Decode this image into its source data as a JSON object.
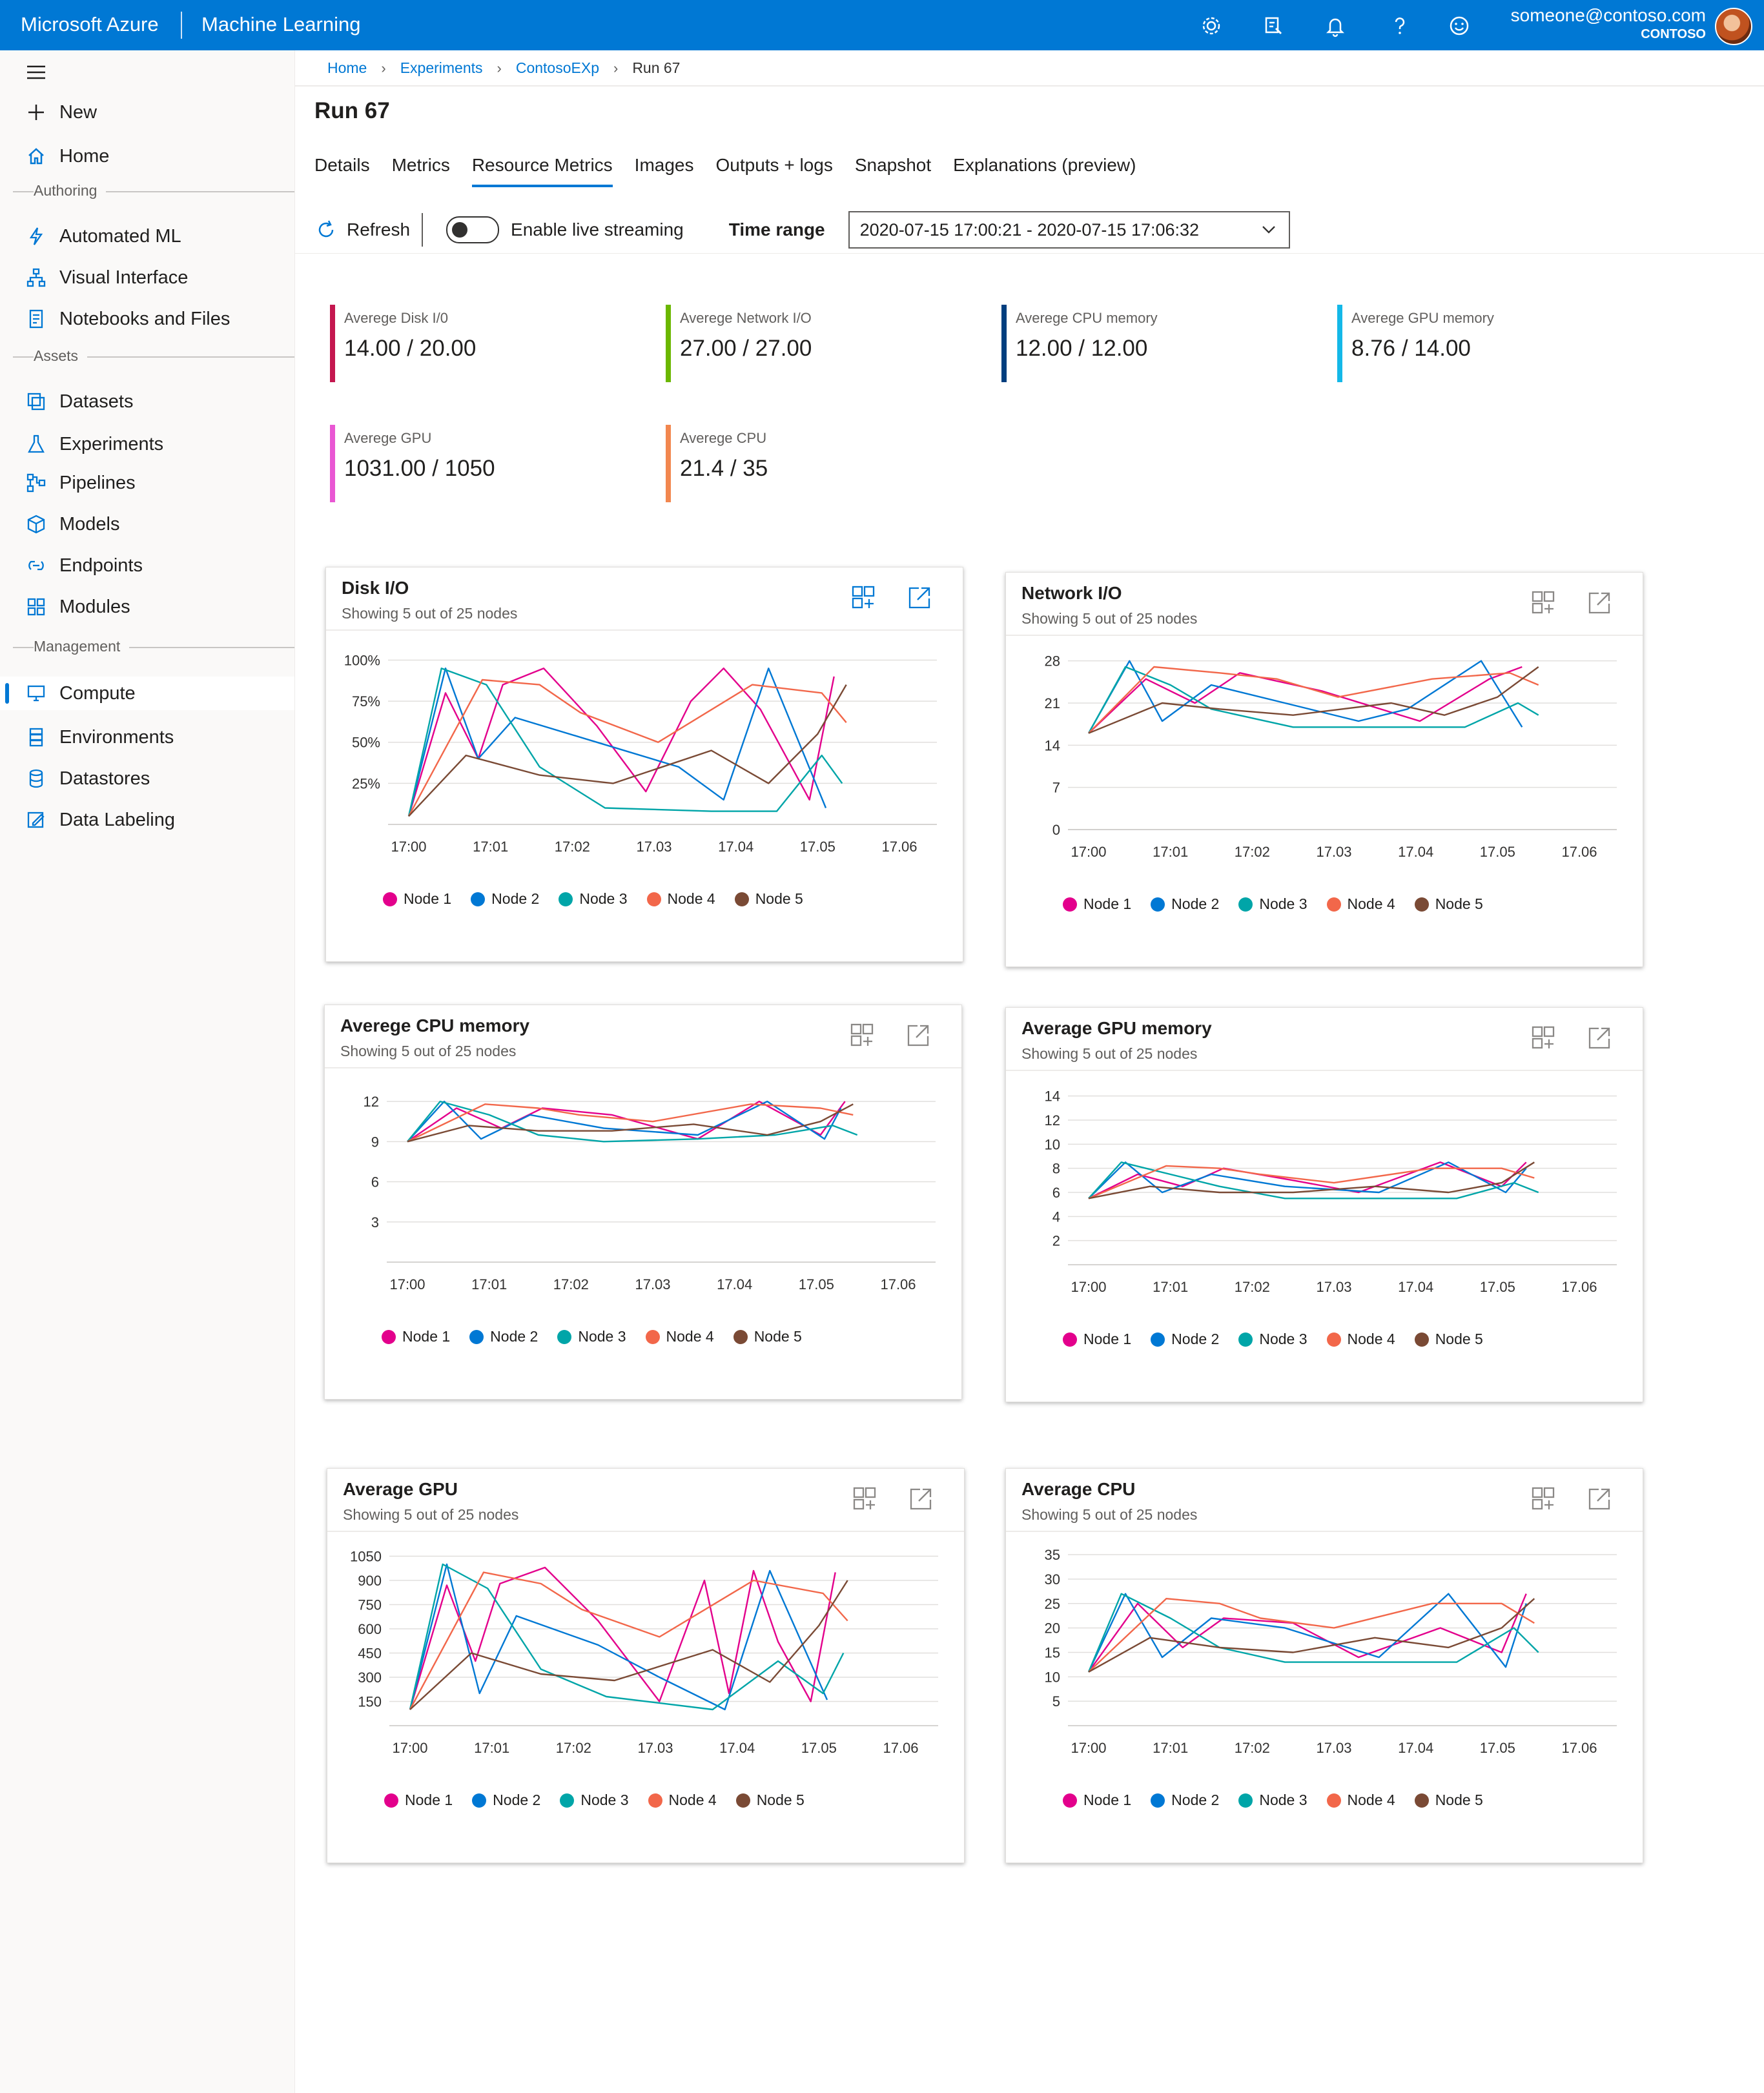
{
  "topbar": {
    "brand": "Microsoft Azure",
    "product": "Machine Learning",
    "icons": [
      "gear-icon",
      "feedback-icon",
      "bell-icon",
      "help-icon",
      "smiley-icon"
    ],
    "user_email": "someone@contoso.com",
    "user_tenant": "CONTOSO"
  },
  "sidebar": {
    "new_label": "New",
    "home_label": "Home",
    "sections": {
      "authoring": "Authoring",
      "assets": "Assets",
      "management": "Management"
    },
    "authoring": [
      {
        "label": "Automated ML",
        "icon": "automl-icon"
      },
      {
        "label": "Visual Interface",
        "icon": "designer-icon"
      },
      {
        "label": "Notebooks and Files",
        "icon": "notebook-icon"
      }
    ],
    "assets": [
      {
        "label": "Datasets",
        "icon": "datasets-icon"
      },
      {
        "label": "Experiments",
        "icon": "flask-icon"
      },
      {
        "label": "Pipelines",
        "icon": "pipeline-icon"
      },
      {
        "label": "Models",
        "icon": "cube-icon"
      },
      {
        "label": "Endpoints",
        "icon": "endpoint-icon"
      },
      {
        "label": "Modules",
        "icon": "modules-icon"
      }
    ],
    "management": [
      {
        "label": "Compute",
        "icon": "compute-icon",
        "selected": true
      },
      {
        "label": "Environments",
        "icon": "environment-icon"
      },
      {
        "label": "Datastores",
        "icon": "database-icon"
      },
      {
        "label": "Data Labeling",
        "icon": "label-icon"
      }
    ]
  },
  "breadcrumb": [
    "Home",
    "Experiments",
    "ContosoEXp",
    "Run 67"
  ],
  "page_title": "Run 67",
  "tabs": [
    {
      "label": "Details"
    },
    {
      "label": "Metrics"
    },
    {
      "label": "Resource Metrics",
      "active": true
    },
    {
      "label": "Images"
    },
    {
      "label": "Outputs + logs"
    },
    {
      "label": "Snapshot"
    },
    {
      "label": "Explanations (preview)"
    }
  ],
  "toolbar": {
    "refresh_label": "Refresh",
    "streaming_label": "Enable live streaming",
    "streaming_on": false,
    "time_range_label": "Time range",
    "time_range_value": "2020-07-15 17:00:21 - 2020-07-15 17:06:32"
  },
  "stats": [
    {
      "label": "Averege  Disk I/0",
      "value": "14.00 / 20.00",
      "color": "#c4174f"
    },
    {
      "label": "Averege Network I/O",
      "value": "27.00 / 27.00",
      "color": "#6bb700"
    },
    {
      "label": "Averege CPU memory",
      "value": "12.00 / 12.00",
      "color": "#003f7f"
    },
    {
      "label": "Averege GPU memory",
      "value": "8.76 / 14.00",
      "color": "#14b8e8"
    },
    {
      "label": "Averege  GPU",
      "value": "1031.00 / 1050",
      "color": "#e957d3"
    },
    {
      "label": "Averege CPU",
      "value": "21.4 / 35",
      "color": "#f2874f"
    }
  ],
  "series_colors": {
    "Node 1": "#e3008c",
    "Node 2": "#0078d4",
    "Node 3": "#00a5a8",
    "Node 4": "#f2674a",
    "Node 5": "#7a4a35"
  },
  "chart_data": [
    {
      "type": "line",
      "title": "Disk I/O",
      "subtitle": "Showing 5 out of 25 nodes",
      "x_labels": [
        "17:00",
        "17:01",
        "17:02",
        "17.03",
        "17.04",
        "17.05",
        "17.06"
      ],
      "ylim": [
        0,
        110
      ],
      "yticks": [
        25,
        50,
        75,
        100
      ],
      "ytick_labels": [
        "25%",
        "50%",
        "75%",
        "100%"
      ],
      "highlighted": true,
      "series": [
        {
          "name": "Node 1",
          "x": [
            0,
            0.45,
            0.85,
            1.15,
            1.65,
            2.3,
            2.9,
            3.45,
            3.85,
            4.3,
            4.9,
            5.2
          ],
          "values": [
            5,
            80,
            40,
            85,
            95,
            60,
            20,
            75,
            95,
            70,
            15,
            90
          ]
        },
        {
          "name": "Node 2",
          "x": [
            0,
            0.45,
            0.85,
            1.3,
            2.3,
            3.3,
            3.85,
            4.4,
            5.1
          ],
          "values": [
            5,
            95,
            40,
            65,
            50,
            35,
            15,
            95,
            10
          ]
        },
        {
          "name": "Node 3",
          "x": [
            0,
            0.4,
            0.95,
            1.6,
            2.4,
            3.7,
            4.5,
            5.05,
            5.3
          ],
          "values": [
            5,
            95,
            85,
            35,
            10,
            8,
            8,
            42,
            25
          ]
        },
        {
          "name": "Node 4",
          "x": [
            0,
            0.9,
            1.6,
            2.1,
            3.05,
            4.2,
            5.05,
            5.35
          ],
          "values": [
            5,
            88,
            85,
            68,
            50,
            85,
            80,
            62
          ]
        },
        {
          "name": "Node 5",
          "x": [
            0,
            0.7,
            1.6,
            2.5,
            3.7,
            4.4,
            5.0,
            5.35
          ],
          "values": [
            5,
            42,
            30,
            25,
            45,
            25,
            55,
            85
          ]
        }
      ]
    },
    {
      "type": "line",
      "title": "Network I/O",
      "subtitle": "Showing 5 out of 25 nodes",
      "x_labels": [
        "17:00",
        "17:01",
        "17:02",
        "17.03",
        "17.04",
        "17.05",
        "17.06"
      ],
      "ylim": [
        0,
        30
      ],
      "yticks": [
        0,
        7,
        14,
        21,
        28
      ],
      "ytick_labels": [
        "0",
        "7",
        "14",
        "21",
        "28"
      ],
      "series": [
        {
          "name": "Node 1",
          "x": [
            0,
            0.7,
            1.3,
            1.85,
            2.85,
            4.05,
            4.9,
            5.3
          ],
          "values": [
            16,
            25,
            21,
            26,
            23,
            18,
            25,
            27
          ]
        },
        {
          "name": "Node 2",
          "x": [
            0,
            0.5,
            0.9,
            1.5,
            2.4,
            3.3,
            3.9,
            4.8,
            5.3
          ],
          "values": [
            16,
            28,
            18,
            24,
            21,
            18,
            20,
            28,
            17
          ]
        },
        {
          "name": "Node 3",
          "x": [
            0,
            0.45,
            1.0,
            1.5,
            2.5,
            3.6,
            4.6,
            5.25,
            5.5
          ],
          "values": [
            16,
            27,
            24,
            20,
            17,
            17,
            17,
            21,
            19
          ]
        },
        {
          "name": "Node 4",
          "x": [
            0,
            0.8,
            1.6,
            2.3,
            3.05,
            4.2,
            5.15,
            5.5
          ],
          "values": [
            16,
            27,
            26,
            25,
            22,
            25,
            26,
            24
          ]
        },
        {
          "name": "Node 5",
          "x": [
            0,
            0.9,
            1.6,
            2.5,
            3.7,
            4.35,
            5.0,
            5.5
          ],
          "values": [
            16,
            21,
            20,
            19,
            21,
            19,
            22,
            27
          ]
        }
      ]
    },
    {
      "type": "line",
      "title": "Averege CPU memory",
      "subtitle": "Showing 5 out of 25 nodes",
      "x_labels": [
        "17:00",
        "17:01",
        "17:02",
        "17.03",
        "17.04",
        "17.05",
        "17.06"
      ],
      "ylim": [
        0,
        13.5
      ],
      "yticks": [
        3,
        6,
        9,
        12
      ],
      "ytick_labels": [
        "3",
        "6",
        "9",
        "12"
      ],
      "series": [
        {
          "name": "Node 1",
          "x": [
            0,
            0.6,
            1.15,
            1.65,
            2.5,
            3.55,
            4.3,
            5.05,
            5.35
          ],
          "values": [
            9,
            11.5,
            10,
            11.5,
            11,
            9.2,
            12,
            9.5,
            12
          ]
        },
        {
          "name": "Node 2",
          "x": [
            0,
            0.45,
            0.9,
            1.5,
            2.4,
            3.55,
            4.4,
            5.1,
            5.3
          ],
          "values": [
            9,
            12,
            9.2,
            11,
            10,
            9.5,
            12,
            9.2,
            11.5
          ]
        },
        {
          "name": "Node 3",
          "x": [
            0,
            0.4,
            1.0,
            1.6,
            2.4,
            3.55,
            4.5,
            5.2,
            5.5
          ],
          "values": [
            9,
            12,
            11,
            9.5,
            9,
            9.2,
            9.5,
            10.2,
            9.5
          ]
        },
        {
          "name": "Node 4",
          "x": [
            0,
            0.95,
            1.6,
            2.1,
            3.0,
            4.2,
            5.05,
            5.45
          ],
          "values": [
            9,
            11.8,
            11.5,
            11,
            10.5,
            11.8,
            11.5,
            11
          ]
        },
        {
          "name": "Node 5",
          "x": [
            0,
            0.75,
            1.6,
            2.5,
            3.5,
            4.4,
            5.05,
            5.45
          ],
          "values": [
            9,
            10.2,
            9.8,
            9.8,
            10.3,
            9.5,
            10.5,
            11.8
          ]
        }
      ]
    },
    {
      "type": "line",
      "title": "Average GPU memory",
      "subtitle": "Showing 5 out of 25 nodes",
      "x_labels": [
        "17:00",
        "17:01",
        "17:02",
        "17.03",
        "17.04",
        "17.05",
        "17.06"
      ],
      "ylim": [
        0,
        15
      ],
      "yticks": [
        2,
        4,
        6,
        8,
        10,
        12,
        14
      ],
      "ytick_labels": [
        "2",
        "4",
        "6",
        "8",
        "10",
        "12",
        "14"
      ],
      "series": [
        {
          "name": "Node 1",
          "x": [
            0,
            0.6,
            1.15,
            1.65,
            2.5,
            3.3,
            4.3,
            5.05,
            5.35
          ],
          "values": [
            5.5,
            7.5,
            6.5,
            8,
            7,
            6,
            8.5,
            6.5,
            8.5
          ]
        },
        {
          "name": "Node 2",
          "x": [
            0,
            0.45,
            0.9,
            1.5,
            2.4,
            3.55,
            4.4,
            5.1,
            5.35
          ],
          "values": [
            5.5,
            8.5,
            6,
            7.5,
            6.5,
            6,
            8.5,
            6,
            8
          ]
        },
        {
          "name": "Node 3",
          "x": [
            0,
            0.4,
            1.0,
            1.6,
            2.4,
            3.55,
            4.5,
            5.2,
            5.5
          ],
          "values": [
            5.5,
            8.5,
            7.5,
            6.5,
            5.5,
            5.5,
            5.5,
            6.8,
            6
          ]
        },
        {
          "name": "Node 4",
          "x": [
            0,
            0.95,
            1.6,
            2.1,
            3.0,
            4.2,
            5.05,
            5.45
          ],
          "values": [
            5.5,
            8.2,
            8,
            7.5,
            6.8,
            8,
            8,
            7.2
          ]
        },
        {
          "name": "Node 5",
          "x": [
            0,
            0.75,
            1.6,
            2.5,
            3.5,
            4.4,
            5.05,
            5.45
          ],
          "values": [
            5.5,
            6.5,
            6,
            6,
            6.5,
            6,
            6.8,
            8.5
          ]
        }
      ]
    },
    {
      "type": "line",
      "title": "Average GPU",
      "subtitle": "Showing 5 out of 25 nodes",
      "x_labels": [
        "17:00",
        "17:01",
        "17:02",
        "17.03",
        "17.04",
        "17.05",
        "17.06"
      ],
      "ylim": [
        0,
        1120
      ],
      "yticks": [
        150,
        300,
        450,
        600,
        750,
        900,
        1050
      ],
      "ytick_labels": [
        "150",
        "300",
        "450",
        "600",
        "750",
        "900",
        "1050"
      ],
      "series": [
        {
          "name": "Node 1",
          "x": [
            0,
            0.45,
            0.8,
            1.1,
            1.65,
            2.3,
            3.05,
            3.6,
            3.9,
            4.2,
            4.5,
            4.9,
            5.2
          ],
          "values": [
            100,
            870,
            400,
            880,
            980,
            650,
            150,
            900,
            200,
            960,
            520,
            150,
            950
          ]
        },
        {
          "name": "Node 2",
          "x": [
            0,
            0.45,
            0.85,
            1.3,
            2.3,
            3.05,
            3.85,
            4.4,
            5.1
          ],
          "values": [
            100,
            1000,
            200,
            680,
            500,
            300,
            100,
            960,
            160
          ]
        },
        {
          "name": "Node 3",
          "x": [
            0,
            0.4,
            0.95,
            1.6,
            2.4,
            3.7,
            4.5,
            5.05,
            5.3
          ],
          "values": [
            100,
            1000,
            850,
            350,
            180,
            100,
            400,
            200,
            450
          ]
        },
        {
          "name": "Node 4",
          "x": [
            0,
            0.9,
            1.6,
            2.1,
            3.05,
            4.2,
            5.05,
            5.35
          ],
          "values": [
            100,
            950,
            880,
            720,
            550,
            900,
            820,
            650
          ]
        },
        {
          "name": "Node 5",
          "x": [
            0,
            0.75,
            1.6,
            2.5,
            3.7,
            4.4,
            5.0,
            5.35
          ],
          "values": [
            100,
            450,
            320,
            280,
            470,
            270,
            620,
            900
          ]
        }
      ]
    },
    {
      "type": "line",
      "title": "Average CPU",
      "subtitle": "Showing 5 out of 25 nodes",
      "x_labels": [
        "17:00",
        "17:01",
        "17:02",
        "17.03",
        "17.04",
        "17.05",
        "17.06"
      ],
      "ylim": [
        0,
        37
      ],
      "yticks": [
        5,
        10,
        15,
        20,
        25,
        30,
        35
      ],
      "ytick_labels": [
        "5",
        "10",
        "15",
        "20",
        "25",
        "30",
        "35"
      ],
      "series": [
        {
          "name": "Node 1",
          "x": [
            0,
            0.6,
            1.15,
            1.65,
            2.5,
            3.3,
            4.3,
            5.05,
            5.35
          ],
          "values": [
            11,
            25,
            16,
            22,
            21,
            14,
            20,
            15,
            27
          ]
        },
        {
          "name": "Node 2",
          "x": [
            0,
            0.45,
            0.9,
            1.5,
            2.4,
            3.55,
            4.4,
            5.1,
            5.35
          ],
          "values": [
            11,
            27,
            14,
            22,
            20,
            14,
            27,
            12,
            25
          ]
        },
        {
          "name": "Node 3",
          "x": [
            0,
            0.4,
            1.0,
            1.6,
            2.4,
            3.55,
            4.5,
            5.2,
            5.5
          ],
          "values": [
            11,
            27,
            22,
            16,
            13,
            13,
            13,
            20,
            15
          ]
        },
        {
          "name": "Node 4",
          "x": [
            0,
            0.95,
            1.6,
            2.1,
            3.0,
            4.2,
            5.05,
            5.45
          ],
          "values": [
            11,
            26,
            25,
            22,
            20,
            25,
            25,
            21
          ]
        },
        {
          "name": "Node 5",
          "x": [
            0,
            0.75,
            1.6,
            2.5,
            3.5,
            4.4,
            5.05,
            5.45
          ],
          "values": [
            11,
            18,
            16,
            15,
            18,
            16,
            20,
            26
          ]
        }
      ]
    }
  ]
}
